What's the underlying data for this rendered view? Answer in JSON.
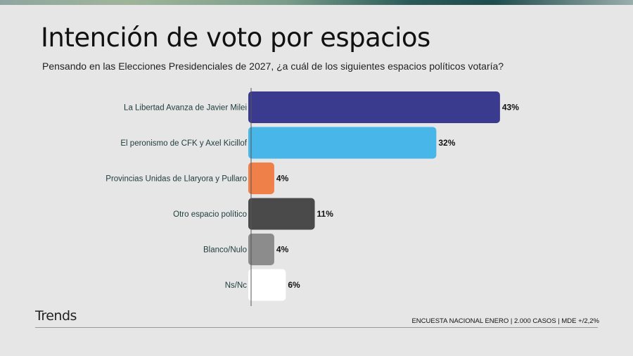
{
  "header": {
    "title": "Intención de voto por espacios",
    "subtitle": "Pensando en las Elecciones Presidenciales de 2027, ¿a cuál de los siguientes espacios políticos votaría?"
  },
  "footer": {
    "brand": "Trends",
    "note": "ENCUESTA NACIONAL ENERO | 2.000 CASOS | MDE +/2,2%"
  },
  "chart_data": {
    "type": "bar",
    "orientation": "horizontal",
    "categories": [
      "La Libertad Avanza de Javier Milei",
      "El peronismo de CFK y Axel Kicillof",
      "Provincias Unidas de Llaryora y Pullaro",
      "Otro espacio político",
      "Blanco/Nulo",
      "Ns/Nc"
    ],
    "values": [
      43,
      32,
      4,
      11,
      4,
      6
    ],
    "data_labels": [
      "43%",
      "32%",
      "4%",
      "11%",
      "4%",
      "6%"
    ],
    "colors": [
      "#3a3a8e",
      "#48b6e8",
      "#f0804a",
      "#4a4a4a",
      "#8c8c8c",
      "#ffffff"
    ],
    "title": "Intención de voto por espacios",
    "xlabel": "",
    "ylabel": "",
    "xlim": [
      0,
      50
    ],
    "grid": false
  }
}
